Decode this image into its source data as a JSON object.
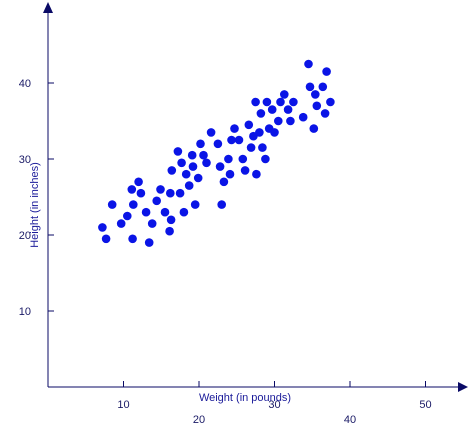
{
  "chart_data": {
    "type": "scatter",
    "title": "",
    "xlabel": "Weight (in pounds)",
    "ylabel": "Height (in inches)",
    "xlim": [
      0,
      55
    ],
    "ylim": [
      0,
      50
    ],
    "x_ticks": [
      10,
      20,
      30,
      40,
      50
    ],
    "y_ticks": [
      10,
      20,
      30,
      40
    ],
    "grid": false,
    "legend": "none",
    "marker_color": "#0a14e6",
    "axis_color": "#0a0a66",
    "points": [
      {
        "x": 7.2,
        "y": 21.0
      },
      {
        "x": 7.7,
        "y": 19.5
      },
      {
        "x": 8.5,
        "y": 24.0
      },
      {
        "x": 9.7,
        "y": 21.5
      },
      {
        "x": 10.5,
        "y": 22.5
      },
      {
        "x": 11.1,
        "y": 26.0
      },
      {
        "x": 11.3,
        "y": 24.0
      },
      {
        "x": 11.2,
        "y": 19.5
      },
      {
        "x": 12.0,
        "y": 27.0
      },
      {
        "x": 12.3,
        "y": 25.5
      },
      {
        "x": 13.0,
        "y": 23.0
      },
      {
        "x": 13.4,
        "y": 19.0
      },
      {
        "x": 13.8,
        "y": 21.5
      },
      {
        "x": 14.4,
        "y": 24.5
      },
      {
        "x": 14.9,
        "y": 26.0
      },
      {
        "x": 15.5,
        "y": 23.0
      },
      {
        "x": 16.1,
        "y": 20.5
      },
      {
        "x": 16.3,
        "y": 22.0
      },
      {
        "x": 16.2,
        "y": 25.5
      },
      {
        "x": 16.4,
        "y": 28.5
      },
      {
        "x": 17.2,
        "y": 31.0
      },
      {
        "x": 17.5,
        "y": 25.5
      },
      {
        "x": 17.7,
        "y": 29.5
      },
      {
        "x": 18.0,
        "y": 23.0
      },
      {
        "x": 18.3,
        "y": 28.0
      },
      {
        "x": 18.7,
        "y": 26.5
      },
      {
        "x": 19.1,
        "y": 30.5
      },
      {
        "x": 19.2,
        "y": 29.0
      },
      {
        "x": 19.5,
        "y": 24.0
      },
      {
        "x": 19.9,
        "y": 27.5
      },
      {
        "x": 20.2,
        "y": 32.0
      },
      {
        "x": 20.6,
        "y": 30.5
      },
      {
        "x": 21.0,
        "y": 29.5
      },
      {
        "x": 21.6,
        "y": 33.5
      },
      {
        "x": 22.5,
        "y": 32.0
      },
      {
        "x": 22.8,
        "y": 29.0
      },
      {
        "x": 23.0,
        "y": 24.0
      },
      {
        "x": 23.3,
        "y": 27.0
      },
      {
        "x": 23.9,
        "y": 30.0
      },
      {
        "x": 24.1,
        "y": 28.0
      },
      {
        "x": 24.3,
        "y": 32.5
      },
      {
        "x": 24.7,
        "y": 34.0
      },
      {
        "x": 25.3,
        "y": 32.5
      },
      {
        "x": 25.8,
        "y": 30.0
      },
      {
        "x": 26.1,
        "y": 28.5
      },
      {
        "x": 26.6,
        "y": 34.5
      },
      {
        "x": 26.9,
        "y": 31.5
      },
      {
        "x": 27.2,
        "y": 33.0
      },
      {
        "x": 27.5,
        "y": 37.5
      },
      {
        "x": 27.6,
        "y": 28.0
      },
      {
        "x": 28.0,
        "y": 33.5
      },
      {
        "x": 28.2,
        "y": 36.0
      },
      {
        "x": 28.4,
        "y": 31.5
      },
      {
        "x": 28.8,
        "y": 30.0
      },
      {
        "x": 29.0,
        "y": 37.5
      },
      {
        "x": 29.3,
        "y": 34.0
      },
      {
        "x": 29.7,
        "y": 36.5
      },
      {
        "x": 30.0,
        "y": 33.5
      },
      {
        "x": 30.5,
        "y": 35.0
      },
      {
        "x": 30.8,
        "y": 37.5
      },
      {
        "x": 31.3,
        "y": 38.5
      },
      {
        "x": 31.8,
        "y": 36.5
      },
      {
        "x": 32.1,
        "y": 35.0
      },
      {
        "x": 32.5,
        "y": 37.5
      },
      {
        "x": 33.8,
        "y": 35.5
      },
      {
        "x": 34.5,
        "y": 42.5
      },
      {
        "x": 34.7,
        "y": 39.5
      },
      {
        "x": 35.2,
        "y": 34.0
      },
      {
        "x": 35.4,
        "y": 38.5
      },
      {
        "x": 35.6,
        "y": 37.0
      },
      {
        "x": 36.4,
        "y": 39.5
      },
      {
        "x": 36.7,
        "y": 36.0
      },
      {
        "x": 36.9,
        "y": 41.5
      },
      {
        "x": 37.4,
        "y": 37.5
      }
    ]
  }
}
